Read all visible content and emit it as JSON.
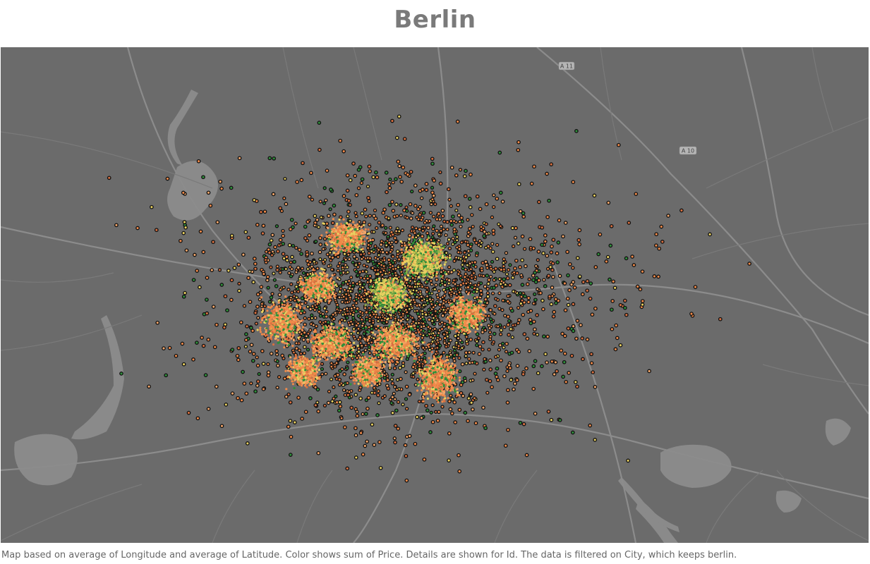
{
  "title": "Berlin",
  "caption": "Map based on average of Longitude and average of Latitude.  Color shows sum of Price.  Details are shown for Id. The data is filtered on City, which keeps berlin.",
  "map": {
    "highway_labels": [
      "A 11",
      "A 10"
    ],
    "colors": {
      "land": "#6b6b6b",
      "water": "#8a8a8a",
      "roads_major": "#8c8c8c",
      "roads_minor": "#7a7a7a",
      "marker_outline": "#111111",
      "price_low": "#2f8f3a",
      "price_mid": "#e8d060",
      "price_high": "#f08a4a"
    }
  }
}
